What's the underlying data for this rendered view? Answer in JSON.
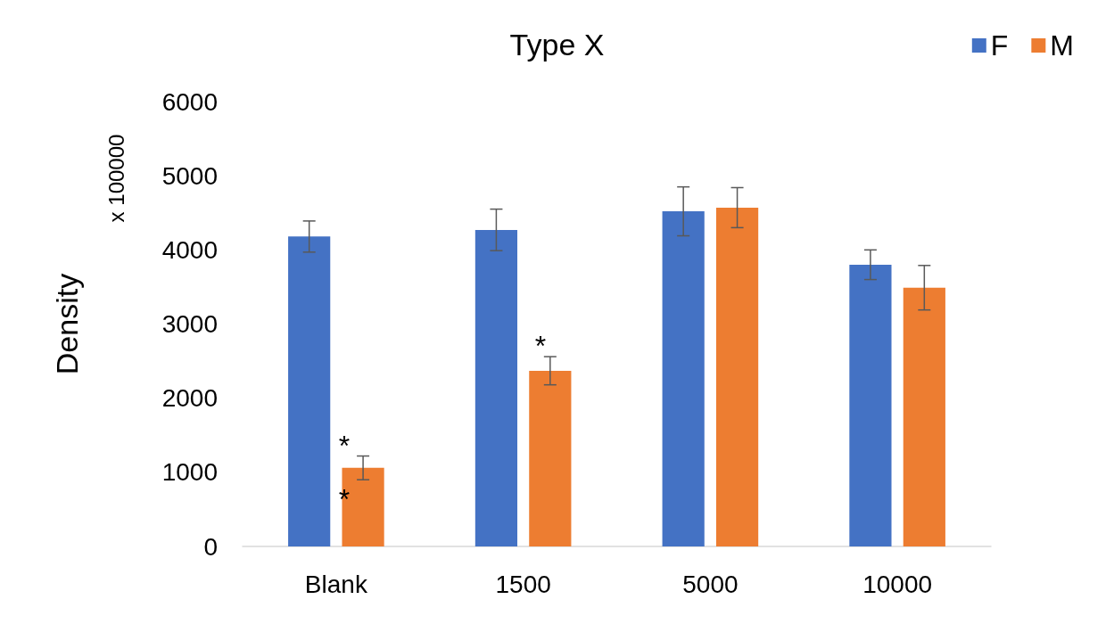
{
  "chart_data": {
    "type": "bar",
    "title": "Type X",
    "ylabel": "Density",
    "categories": [
      "Blank",
      "1500",
      "5000",
      "10000"
    ],
    "series": [
      {
        "name": "F",
        "color": "#4472c4",
        "values": [
          4180,
          4270,
          4520,
          3800
        ],
        "errors": [
          210,
          280,
          330,
          200
        ]
      },
      {
        "name": "M",
        "color": "#ed7d31",
        "values": [
          1060,
          2370,
          4570,
          3490
        ],
        "errors": [
          160,
          190,
          270,
          300
        ]
      }
    ],
    "ylim": [
      0,
      6000
    ],
    "yticks": [
      0,
      1000,
      2000,
      3000,
      4000,
      5000,
      6000
    ],
    "grid": false,
    "legend": "top right",
    "annotations": [
      "x 100000",
      "*",
      "*",
      "*"
    ]
  }
}
